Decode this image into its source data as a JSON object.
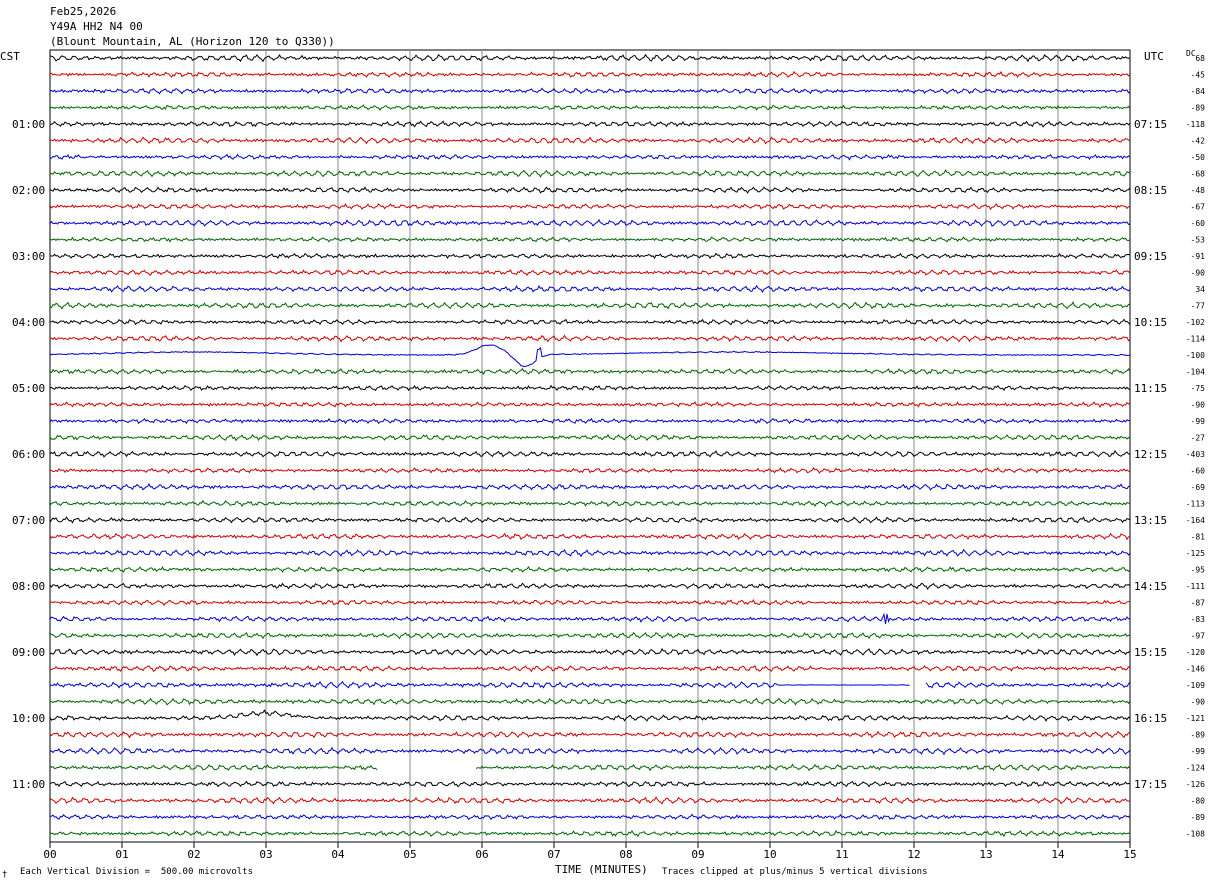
{
  "header": {
    "date": "Feb25,2026",
    "channel": "Y49A HH2 N4 00",
    "location": "(Blount Mountain, AL (Horizon 120 to Q330))"
  },
  "left_tz": "CST",
  "right_tz": "UTC",
  "dc_label": "DC",
  "footer": {
    "vertical_division": "Each Vertical Division =  500.00 microvolts",
    "clip_note": "Traces clipped at plus/minus 5 vertical divisions",
    "corner_mark": "†"
  },
  "chart_data": {
    "type": "line",
    "title": "",
    "xlabel": "TIME (MINUTES)",
    "ylabel": "",
    "xlim": [
      0,
      15
    ],
    "x_ticks": [
      "00",
      "01",
      "02",
      "03",
      "04",
      "05",
      "06",
      "07",
      "08",
      "09",
      "10",
      "11",
      "12",
      "13",
      "14",
      "15"
    ],
    "trace_colors": [
      "#000000",
      "#cc0000",
      "#0000cc",
      "#006600"
    ],
    "traces_per_hour": 4,
    "minutes_per_trace": 15,
    "left_hour_labels": [
      "01:00",
      "02:00",
      "03:00",
      "04:00",
      "05:00",
      "06:00",
      "07:00",
      "08:00",
      "09:00",
      "10:00",
      "11:00"
    ],
    "right_hour_labels": [
      "07:15",
      "08:15",
      "09:15",
      "10:15",
      "11:15",
      "12:15",
      "13:15",
      "14:15",
      "15:15",
      "16:15",
      "17:15"
    ],
    "dc_offsets": [
      "68",
      "-45",
      "-84",
      "-89",
      "-118",
      "-42",
      "-50",
      "-68",
      "-48",
      "-67",
      "-60",
      "-53",
      "-91",
      "-90",
      "34",
      "-77",
      "-102",
      "-114",
      "-100",
      "-104",
      "-75",
      "-90",
      "-99",
      "-27",
      "-403",
      "-60",
      "-69",
      "-113",
      "-164",
      "-81",
      "-125",
      "-95",
      "-111",
      "-87",
      "-83",
      "-97",
      "-120",
      "-146",
      "-109",
      "-90",
      "-121",
      "-89",
      "-99",
      "-124",
      "-126",
      "-80",
      "-89",
      "-108"
    ],
    "events": [
      {
        "trace_index": 18,
        "description": "long-period swell with spike",
        "start_min": 0,
        "end_min": 15,
        "peak_min": 6.1,
        "trough_min": 6.6,
        "spike_min": 6.8
      },
      {
        "trace_index": 34,
        "description": "local burst",
        "at_min": 11.6
      },
      {
        "trace_index": 40,
        "description": "small swell",
        "at_min": 3.0
      },
      {
        "trace_index": 38,
        "description": "flat / gap",
        "flat_start_min": 10.1,
        "gap_start_min": 11.95,
        "gap_end_min": 12.15
      },
      {
        "trace_index": 43,
        "description": "data gap",
        "gap_start_min": 4.55,
        "gap_end_min": 5.9
      }
    ]
  }
}
